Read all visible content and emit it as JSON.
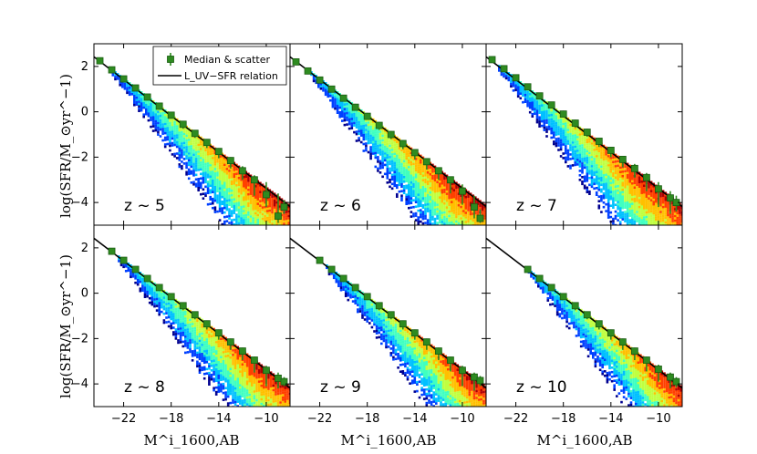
{
  "chart_data": {
    "type": "scatter",
    "layout": "2x3 grid of panels sharing axes",
    "xlabel": "M^i_1600,AB",
    "ylabel": "log(SFR/M_⊙yr^−1)",
    "xlim": [
      -24.5,
      -8.0
    ],
    "ylim": [
      -5.0,
      3.0
    ],
    "xticks": [
      -22,
      -18,
      -14,
      -10
    ],
    "yticks": [
      -4,
      -2,
      0,
      2
    ],
    "xtick_labels": [
      "−22",
      "−18",
      "−14",
      "−10"
    ],
    "ytick_labels": [
      "−4",
      "−2",
      "0",
      "2"
    ],
    "grid": false,
    "legend": {
      "placement": "top-right of first panel",
      "entries": [
        {
          "label": "Median & scatter",
          "marker": "green square with error bar"
        },
        {
          "label": "L_UV−SFR relation",
          "line": "solid black"
        }
      ]
    },
    "relation_line": {
      "x": [
        -24.5,
        -8.0
      ],
      "y": [
        2.42,
        -4.18
      ]
    },
    "colors": {
      "median_marker": "#2e8b20",
      "median_marker_edge": "#1a5c12",
      "relation_line": "#000000",
      "density_colormap": [
        "#00008f",
        "#0040ff",
        "#00c0ff",
        "#40ffc0",
        "#c0ff40",
        "#ffc000",
        "#ff4000",
        "#b00000"
      ]
    },
    "panels": [
      {
        "label": "z ~ 5",
        "density_xmin": -23.0,
        "median": [
          {
            "x": -24.0,
            "y": 2.25,
            "lo": 2.1,
            "hi": 2.35
          },
          {
            "x": -23.0,
            "y": 1.85,
            "lo": 1.75,
            "hi": 1.95
          },
          {
            "x": -22.0,
            "y": 1.45,
            "lo": 1.3,
            "hi": 1.55
          },
          {
            "x": -21.0,
            "y": 1.05,
            "lo": 0.95,
            "hi": 1.15
          },
          {
            "x": -20.0,
            "y": 0.65,
            "lo": 0.5,
            "hi": 0.75
          },
          {
            "x": -19.0,
            "y": 0.25,
            "lo": 0.1,
            "hi": 0.4
          },
          {
            "x": -18.0,
            "y": -0.15,
            "lo": -0.3,
            "hi": 0.0
          },
          {
            "x": -17.0,
            "y": -0.55,
            "lo": -0.75,
            "hi": -0.4
          },
          {
            "x": -16.0,
            "y": -0.95,
            "lo": -1.15,
            "hi": -0.8
          },
          {
            "x": -15.0,
            "y": -1.35,
            "lo": -1.6,
            "hi": -1.2
          },
          {
            "x": -14.0,
            "y": -1.75,
            "lo": -2.05,
            "hi": -1.6
          },
          {
            "x": -13.0,
            "y": -2.15,
            "lo": -2.5,
            "hi": -2.0
          },
          {
            "x": -12.0,
            "y": -2.6,
            "lo": -3.0,
            "hi": -2.4
          },
          {
            "x": -11.0,
            "y": -3.0,
            "lo": -3.7,
            "hi": -2.8
          },
          {
            "x": -10.0,
            "y": -3.65,
            "lo": -4.2,
            "hi": -3.1
          },
          {
            "x": -9.0,
            "y": -4.6,
            "lo": -4.9,
            "hi": -3.6
          },
          {
            "x": -8.5,
            "y": -4.2,
            "lo": -4.5,
            "hi": -3.9
          }
        ]
      },
      {
        "label": "z ~ 6",
        "density_xmin": -23.0,
        "median": [
          {
            "x": -24.0,
            "y": 2.2,
            "lo": 2.1,
            "hi": 2.3
          },
          {
            "x": -23.0,
            "y": 1.8,
            "lo": 1.7,
            "hi": 1.9
          },
          {
            "x": -22.0,
            "y": 1.4,
            "lo": 1.3,
            "hi": 1.5
          },
          {
            "x": -21.0,
            "y": 1.0,
            "lo": 0.9,
            "hi": 1.1
          },
          {
            "x": -20.0,
            "y": 0.6,
            "lo": 0.45,
            "hi": 0.7
          },
          {
            "x": -19.0,
            "y": 0.2,
            "lo": 0.05,
            "hi": 0.35
          },
          {
            "x": -18.0,
            "y": -0.2,
            "lo": -0.35,
            "hi": -0.05
          },
          {
            "x": -17.0,
            "y": -0.6,
            "lo": -0.8,
            "hi": -0.45
          },
          {
            "x": -16.0,
            "y": -1.0,
            "lo": -1.2,
            "hi": -0.85
          },
          {
            "x": -15.0,
            "y": -1.4,
            "lo": -1.65,
            "hi": -1.25
          },
          {
            "x": -14.0,
            "y": -1.8,
            "lo": -2.1,
            "hi": -1.65
          },
          {
            "x": -13.0,
            "y": -2.2,
            "lo": -2.55,
            "hi": -2.05
          },
          {
            "x": -12.0,
            "y": -2.6,
            "lo": -3.0,
            "hi": -2.45
          },
          {
            "x": -11.0,
            "y": -3.0,
            "lo": -3.6,
            "hi": -2.85
          },
          {
            "x": -10.0,
            "y": -3.5,
            "lo": -4.1,
            "hi": -3.2
          },
          {
            "x": -9.0,
            "y": -4.2,
            "lo": -4.7,
            "hi": -3.7
          },
          {
            "x": -8.5,
            "y": -4.7,
            "lo": -4.9,
            "hi": -4.3
          }
        ]
      },
      {
        "label": "z ~ 7",
        "density_xmin": -23.5,
        "median": [
          {
            "x": -24.0,
            "y": 2.3,
            "lo": 2.2,
            "hi": 2.4
          },
          {
            "x": -23.0,
            "y": 1.9,
            "lo": 1.8,
            "hi": 2.0
          },
          {
            "x": -22.0,
            "y": 1.5,
            "lo": 1.4,
            "hi": 1.6
          },
          {
            "x": -21.0,
            "y": 1.1,
            "lo": 1.0,
            "hi": 1.2
          },
          {
            "x": -20.0,
            "y": 0.7,
            "lo": 0.55,
            "hi": 0.8
          },
          {
            "x": -19.0,
            "y": 0.3,
            "lo": 0.15,
            "hi": 0.4
          },
          {
            "x": -18.0,
            "y": -0.1,
            "lo": -0.25,
            "hi": 0.05
          },
          {
            "x": -17.0,
            "y": -0.5,
            "lo": -0.7,
            "hi": -0.35
          },
          {
            "x": -16.0,
            "y": -0.9,
            "lo": -1.1,
            "hi": -0.75
          },
          {
            "x": -15.0,
            "y": -1.3,
            "lo": -1.55,
            "hi": -1.15
          },
          {
            "x": -14.0,
            "y": -1.7,
            "lo": -2.0,
            "hi": -1.55
          },
          {
            "x": -13.0,
            "y": -2.1,
            "lo": -2.45,
            "hi": -1.95
          },
          {
            "x": -12.0,
            "y": -2.5,
            "lo": -2.9,
            "hi": -2.3
          },
          {
            "x": -11.0,
            "y": -2.9,
            "lo": -3.5,
            "hi": -2.7
          },
          {
            "x": -10.0,
            "y": -3.4,
            "lo": -4.2,
            "hi": -3.1
          },
          {
            "x": -9.0,
            "y": -3.8,
            "lo": -4.5,
            "hi": -3.5
          },
          {
            "x": -8.5,
            "y": -4.0,
            "lo": -4.4,
            "hi": -3.7
          }
        ]
      },
      {
        "label": "z ~ 8",
        "density_xmin": -22.5,
        "median": [
          {
            "x": -23.0,
            "y": 1.85,
            "lo": 1.75,
            "hi": 1.95
          },
          {
            "x": -22.0,
            "y": 1.45,
            "lo": 1.35,
            "hi": 1.55
          },
          {
            "x": -21.0,
            "y": 1.05,
            "lo": 0.95,
            "hi": 1.15
          },
          {
            "x": -20.0,
            "y": 0.65,
            "lo": 0.5,
            "hi": 0.75
          },
          {
            "x": -19.0,
            "y": 0.25,
            "lo": 0.1,
            "hi": 0.4
          },
          {
            "x": -18.0,
            "y": -0.15,
            "lo": -0.3,
            "hi": 0.0
          },
          {
            "x": -17.0,
            "y": -0.55,
            "lo": -0.75,
            "hi": -0.4
          },
          {
            "x": -16.0,
            "y": -0.95,
            "lo": -1.15,
            "hi": -0.8
          },
          {
            "x": -15.0,
            "y": -1.35,
            "lo": -1.6,
            "hi": -1.2
          },
          {
            "x": -14.0,
            "y": -1.75,
            "lo": -2.05,
            "hi": -1.6
          },
          {
            "x": -13.0,
            "y": -2.15,
            "lo": -2.5,
            "hi": -2.0
          },
          {
            "x": -12.0,
            "y": -2.55,
            "lo": -2.95,
            "hi": -2.4
          },
          {
            "x": -11.0,
            "y": -2.95,
            "lo": -3.5,
            "hi": -2.8
          },
          {
            "x": -10.0,
            "y": -3.4,
            "lo": -4.1,
            "hi": -3.2
          },
          {
            "x": -9.0,
            "y": -3.75,
            "lo": -4.2,
            "hi": -3.5
          },
          {
            "x": -8.5,
            "y": -3.9,
            "lo": -4.1,
            "hi": -3.7
          }
        ]
      },
      {
        "label": "z ~ 9",
        "density_xmin": -21.5,
        "median": [
          {
            "x": -22.0,
            "y": 1.45,
            "lo": 1.35,
            "hi": 1.55
          },
          {
            "x": -21.0,
            "y": 1.05,
            "lo": 0.95,
            "hi": 1.15
          },
          {
            "x": -20.0,
            "y": 0.65,
            "lo": 0.5,
            "hi": 0.75
          },
          {
            "x": -19.0,
            "y": 0.25,
            "lo": 0.1,
            "hi": 0.4
          },
          {
            "x": -18.0,
            "y": -0.15,
            "lo": -0.3,
            "hi": 0.0
          },
          {
            "x": -17.0,
            "y": -0.55,
            "lo": -0.75,
            "hi": -0.4
          },
          {
            "x": -16.0,
            "y": -0.95,
            "lo": -1.15,
            "hi": -0.8
          },
          {
            "x": -15.0,
            "y": -1.35,
            "lo": -1.6,
            "hi": -1.2
          },
          {
            "x": -14.0,
            "y": -1.75,
            "lo": -2.05,
            "hi": -1.6
          },
          {
            "x": -13.0,
            "y": -2.15,
            "lo": -2.5,
            "hi": -2.0
          },
          {
            "x": -12.0,
            "y": -2.55,
            "lo": -2.95,
            "hi": -2.4
          },
          {
            "x": -11.0,
            "y": -2.95,
            "lo": -3.45,
            "hi": -2.8
          },
          {
            "x": -10.0,
            "y": -3.4,
            "lo": -4.1,
            "hi": -3.2
          },
          {
            "x": -9.0,
            "y": -3.7,
            "lo": -4.3,
            "hi": -3.5
          },
          {
            "x": -8.5,
            "y": -3.85,
            "lo": -4.1,
            "hi": -3.65
          }
        ]
      },
      {
        "label": "z ~ 10",
        "density_xmin": -21.0,
        "median": [
          {
            "x": -21.0,
            "y": 1.05,
            "lo": 0.95,
            "hi": 1.15
          },
          {
            "x": -20.0,
            "y": 0.65,
            "lo": 0.5,
            "hi": 0.75
          },
          {
            "x": -19.0,
            "y": 0.25,
            "lo": 0.1,
            "hi": 0.4
          },
          {
            "x": -18.0,
            "y": -0.15,
            "lo": -0.3,
            "hi": 0.0
          },
          {
            "x": -17.0,
            "y": -0.55,
            "lo": -0.75,
            "hi": -0.4
          },
          {
            "x": -16.0,
            "y": -0.95,
            "lo": -1.15,
            "hi": -0.8
          },
          {
            "x": -15.0,
            "y": -1.35,
            "lo": -1.6,
            "hi": -1.2
          },
          {
            "x": -14.0,
            "y": -1.75,
            "lo": -2.05,
            "hi": -1.6
          },
          {
            "x": -13.0,
            "y": -2.15,
            "lo": -2.5,
            "hi": -2.0
          },
          {
            "x": -12.0,
            "y": -2.55,
            "lo": -2.95,
            "hi": -2.4
          },
          {
            "x": -11.0,
            "y": -2.95,
            "lo": -3.45,
            "hi": -2.8
          },
          {
            "x": -10.0,
            "y": -3.35,
            "lo": -3.9,
            "hi": -3.15
          },
          {
            "x": -9.0,
            "y": -3.7,
            "lo": -4.2,
            "hi": -3.5
          },
          {
            "x": -8.5,
            "y": -3.9,
            "lo": -4.15,
            "hi": -3.7
          }
        ]
      }
    ]
  }
}
